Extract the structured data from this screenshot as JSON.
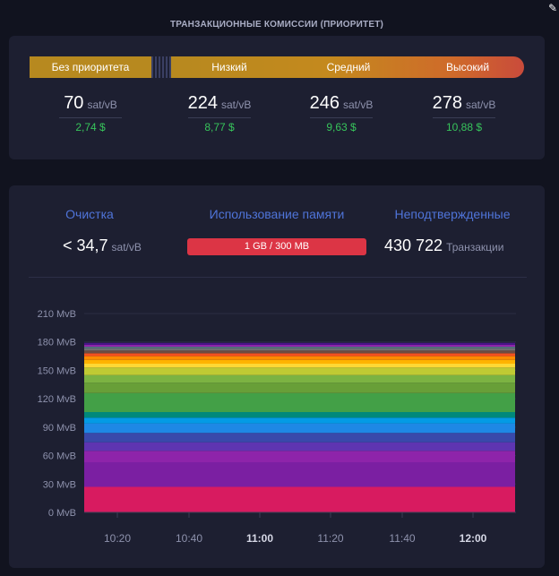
{
  "corner_glyph": "✎",
  "fees": {
    "title": "ТРАНЗАКЦИОННЫЕ КОМИССИИ (ПРИОРИТЕТ)",
    "priority_labels": {
      "none": "Без приоритета",
      "low": "Низкий",
      "medium": "Средний",
      "high": "Высокий"
    },
    "items": [
      {
        "rate": "70",
        "unit": "sat/vB",
        "usd": "2,74 $"
      },
      {
        "rate": "224",
        "unit": "sat/vB",
        "usd": "8,77 $"
      },
      {
        "rate": "246",
        "unit": "sat/vB",
        "usd": "9,63 $"
      },
      {
        "rate": "278",
        "unit": "sat/vB",
        "usd": "10,88 $"
      }
    ]
  },
  "mempool": {
    "purge": {
      "label": "Очистка",
      "value": "< 34,7",
      "unit": "sat/vB"
    },
    "memory": {
      "label": "Использование памяти",
      "value": "1 GB / 300 MB"
    },
    "unconfirmed": {
      "label": "Неподтвержденные",
      "value": "430 722",
      "unit": "Транзакции"
    }
  },
  "colors": {
    "background": "#11131f",
    "card": "#1d1f31",
    "accent_blue": "#4f74d9",
    "usd_green": "#37c45b",
    "memory_bar": "#dc3545"
  },
  "chart_data": {
    "type": "area",
    "title": "",
    "xlabel": "",
    "ylabel": "",
    "y_unit": "MvB",
    "ylim": [
      0,
      210
    ],
    "y_ticks": [
      "0 MvB",
      "30 MvB",
      "60 MvB",
      "90 MvB",
      "120 MvB",
      "150 MvB",
      "180 MvB",
      "210 MvB"
    ],
    "x_ticks": [
      {
        "label": "10:20",
        "bold": false
      },
      {
        "label": "10:40",
        "bold": false
      },
      {
        "label": "11:00",
        "bold": true
      },
      {
        "label": "11:20",
        "bold": false
      },
      {
        "label": "11:40",
        "bold": false
      },
      {
        "label": "12:00",
        "bold": true
      }
    ],
    "x": [
      "10:20",
      "10:40",
      "11:00",
      "11:20",
      "11:40",
      "12:00"
    ],
    "stacked": true,
    "total_approx": 185,
    "series": [
      {
        "color": "#d81b60",
        "values": [
          27,
          27,
          27,
          27,
          27,
          27
        ]
      },
      {
        "color": "#7b1fa2",
        "values": [
          26,
          26,
          26,
          26,
          26,
          26
        ]
      },
      {
        "color": "#8e24aa",
        "values": [
          12,
          12,
          12,
          12,
          12,
          12
        ]
      },
      {
        "color": "#5e35b1",
        "values": [
          9,
          9,
          9,
          9,
          9,
          9
        ]
      },
      {
        "color": "#3949ab",
        "values": [
          10,
          10,
          10,
          10,
          10,
          10
        ]
      },
      {
        "color": "#1e88e5",
        "values": [
          10,
          10,
          10,
          10,
          10,
          10
        ]
      },
      {
        "color": "#039be5",
        "values": [
          6,
          6,
          6,
          6,
          6,
          6
        ]
      },
      {
        "color": "#00897b",
        "values": [
          6,
          6,
          6,
          6,
          6,
          6
        ]
      },
      {
        "color": "#43a047",
        "values": [
          20,
          20,
          20,
          20,
          20,
          20
        ]
      },
      {
        "color": "#689f38",
        "values": [
          11,
          11,
          11,
          11,
          11,
          11
        ]
      },
      {
        "color": "#7cb342",
        "values": [
          8,
          8,
          8,
          8,
          8,
          8
        ]
      },
      {
        "color": "#c0ca33",
        "values": [
          8,
          8,
          8,
          8,
          8,
          8
        ]
      },
      {
        "color": "#fdd835",
        "values": [
          4,
          4,
          4,
          4,
          4,
          4
        ]
      },
      {
        "color": "#ffb300",
        "values": [
          4,
          4,
          4,
          4,
          4,
          4
        ]
      },
      {
        "color": "#fb8c00",
        "values": [
          4,
          4,
          4,
          4,
          4,
          4
        ]
      },
      {
        "color": "#f4511e",
        "values": [
          3,
          3,
          3,
          3,
          3,
          3
        ]
      },
      {
        "color": "#6d4c41",
        "values": [
          3,
          3,
          3,
          3,
          3,
          3
        ]
      },
      {
        "color": "#757575",
        "values": [
          2,
          2,
          2,
          2,
          2,
          2
        ]
      },
      {
        "color": "#546e7a",
        "values": [
          2,
          2,
          2,
          2,
          2,
          2
        ]
      },
      {
        "color": "#8e24aa",
        "values": [
          2,
          2,
          2,
          2,
          2,
          2
        ]
      },
      {
        "color": "#4a148c",
        "values": [
          2,
          2,
          2,
          2,
          2,
          2
        ]
      }
    ],
    "grid": true
  }
}
